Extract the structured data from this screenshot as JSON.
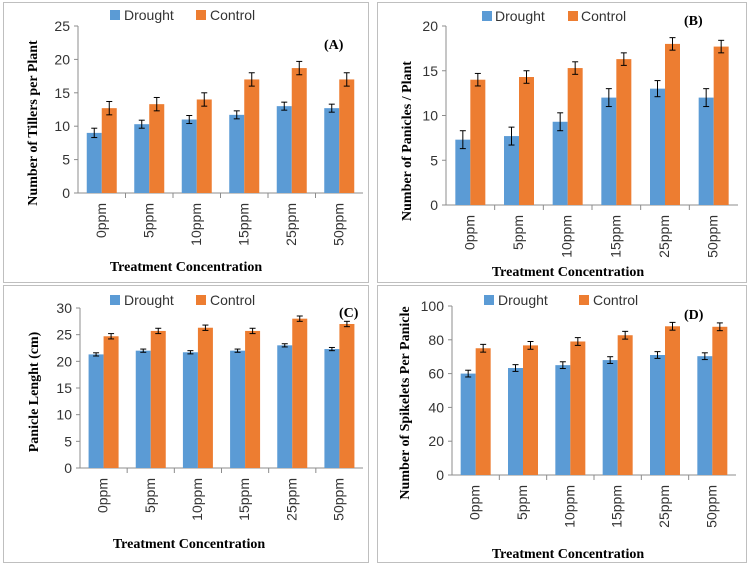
{
  "colors": {
    "drought": "#5b9bd5",
    "control": "#ed7d31",
    "error_bar": "#000000",
    "axis": "#8c8c8c"
  },
  "chart_data": [
    {
      "id": "a",
      "type": "bar",
      "panel_label": "(A)",
      "categories": [
        "0ppm",
        "5ppm",
        "10ppm",
        "15ppm",
        "25ppm",
        "50ppm"
      ],
      "series": [
        {
          "name": "Drought",
          "values": [
            9.0,
            10.3,
            11.0,
            11.7,
            13.0,
            12.7
          ],
          "errors": [
            0.7,
            0.6,
            0.6,
            0.6,
            0.6,
            0.6
          ]
        },
        {
          "name": "Control",
          "values": [
            12.7,
            13.3,
            14.0,
            17.0,
            18.7,
            17.0
          ],
          "errors": [
            1.0,
            1.0,
            1.0,
            1.0,
            1.0,
            1.0
          ]
        }
      ],
      "ylabel": "Number of Tillers per Plant",
      "xlabel": "Treatment Concentration",
      "ylim": [
        0,
        25
      ],
      "yticks": [
        "0",
        "5",
        "10",
        "15",
        "20",
        "25"
      ]
    },
    {
      "id": "b",
      "type": "bar",
      "panel_label": "(B)",
      "categories": [
        "0ppm",
        "5ppm",
        "10ppm",
        "15ppm",
        "25ppm",
        "50ppm"
      ],
      "series": [
        {
          "name": "Drought",
          "values": [
            7.3,
            7.7,
            9.3,
            12.0,
            13.0,
            12.0
          ],
          "errors": [
            1.0,
            1.0,
            1.0,
            1.0,
            0.9,
            1.0
          ]
        },
        {
          "name": "Control",
          "values": [
            14.0,
            14.3,
            15.3,
            16.3,
            18.0,
            17.7
          ],
          "errors": [
            0.7,
            0.7,
            0.7,
            0.7,
            0.7,
            0.7
          ]
        }
      ],
      "ylabel": "Number of Panicles / Plant",
      "xlabel": "Treatment Concentration",
      "ylim": [
        0,
        20
      ],
      "yticks": [
        "0",
        "5",
        "10",
        "15",
        "20"
      ]
    },
    {
      "id": "c",
      "type": "bar",
      "panel_label": "(C)",
      "categories": [
        "0ppm",
        "5ppm",
        "10ppm",
        "15ppm",
        "25ppm",
        "50ppm"
      ],
      "series": [
        {
          "name": "Drought",
          "values": [
            21.3,
            22.0,
            21.7,
            22.0,
            23.0,
            22.3
          ],
          "errors": [
            0.3,
            0.3,
            0.3,
            0.3,
            0.3,
            0.3
          ]
        },
        {
          "name": "Control",
          "values": [
            24.7,
            25.7,
            26.3,
            25.7,
            28.0,
            27.0
          ],
          "errors": [
            0.5,
            0.5,
            0.5,
            0.5,
            0.5,
            0.5
          ]
        }
      ],
      "ylabel": "Panicle Lenght (cm)",
      "xlabel": "Treatment Concentration",
      "ylim": [
        0,
        30
      ],
      "yticks": [
        "0",
        "5",
        "10",
        "15",
        "20",
        "25",
        "30"
      ]
    },
    {
      "id": "d",
      "type": "bar",
      "panel_label": "(D)",
      "categories": [
        "0ppm",
        "5ppm",
        "10ppm",
        "15ppm",
        "25ppm",
        "50ppm"
      ],
      "series": [
        {
          "name": "Drought",
          "values": [
            60,
            63.3,
            65,
            68,
            71,
            70.3
          ],
          "errors": [
            2,
            2,
            2,
            2,
            2,
            2
          ]
        },
        {
          "name": "Control",
          "values": [
            75,
            76.7,
            79,
            82.7,
            88,
            87.7
          ],
          "errors": [
            2.3,
            2.3,
            2.3,
            2.3,
            2.3,
            2.3
          ]
        }
      ],
      "ylabel": "Number of Spikelets Per Panicle",
      "xlabel": "Treatment Concentration",
      "ylim": [
        0,
        100
      ],
      "yticks": [
        "0",
        "20",
        "40",
        "60",
        "80",
        "100"
      ]
    }
  ]
}
